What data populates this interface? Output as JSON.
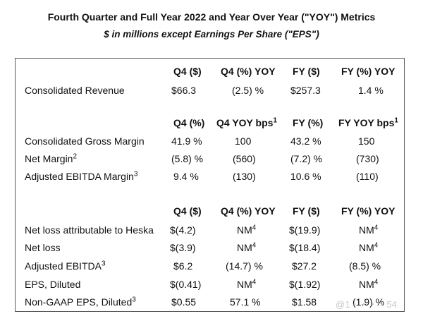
{
  "title": "Fourth Quarter and Full Year 2022 and Year Over Year (\"YOY\") Metrics",
  "subtitle": "$ in millions except Earnings Per Share (\"EPS\")",
  "section1": {
    "headers": [
      "Q4 ($)",
      "Q4 (%) YOY",
      "FY ($)",
      "FY (%) YOY"
    ],
    "rows": [
      {
        "label": "Consolidated Revenue",
        "cells": [
          "$66.3",
          "(2.5) %",
          "$257.3",
          "1.4 %"
        ]
      }
    ]
  },
  "section2": {
    "headers": [
      "Q4 (%)",
      "Q4 YOY bps",
      "FY (%)",
      "FY YOY bps"
    ],
    "header_sups": [
      "",
      "1",
      "",
      "1"
    ],
    "rows": [
      {
        "label": "Consolidated Gross Margin",
        "sup": "",
        "cells": [
          "41.9 %",
          "100",
          "43.2 %",
          "150"
        ]
      },
      {
        "label": "Net Margin",
        "sup": "2",
        "cells": [
          "(5.8) %",
          "(560)",
          "(7.2) %",
          "(730)"
        ]
      },
      {
        "label": "Adjusted EBITDA Margin",
        "sup": "3",
        "cells": [
          "9.4 %",
          "(130)",
          "10.6 %",
          "(110)"
        ]
      }
    ]
  },
  "section3": {
    "headers": [
      "Q4 ($)",
      "Q4 (%) YOY",
      "FY ($)",
      "FY (%) YOY"
    ],
    "rows": [
      {
        "label": "Net loss attributable to Heska",
        "sup": "",
        "cells": [
          "$(4.2)",
          "NM",
          "$(19.9)",
          "NM"
        ],
        "cell_sups": [
          "",
          "4",
          "",
          "4"
        ]
      },
      {
        "label": "Net loss",
        "sup": "",
        "cells": [
          "$(3.9)",
          "NM",
          "$(18.4)",
          "NM"
        ],
        "cell_sups": [
          "",
          "4",
          "",
          "4"
        ]
      },
      {
        "label": "Adjusted EBITDA",
        "sup": "3",
        "cells": [
          "$6.2",
          "(14.7) %",
          "$27.2",
          "(8.5) %"
        ],
        "cell_sups": [
          "",
          "",
          "",
          ""
        ]
      },
      {
        "label": "EPS, Diluted",
        "sup": "",
        "cells": [
          "$(0.41)",
          "NM",
          "$(1.92)",
          "NM"
        ],
        "cell_sups": [
          "",
          "4",
          "",
          "4"
        ]
      },
      {
        "label": "Non-GAAP EPS, Diluted",
        "sup": "3",
        "cells": [
          "$0.55",
          "57.1 %",
          "$1.58",
          "(1.9) %"
        ],
        "cell_sups": [
          "",
          "",
          "",
          ""
        ]
      }
    ]
  },
  "watermark": "@1・・・・54"
}
